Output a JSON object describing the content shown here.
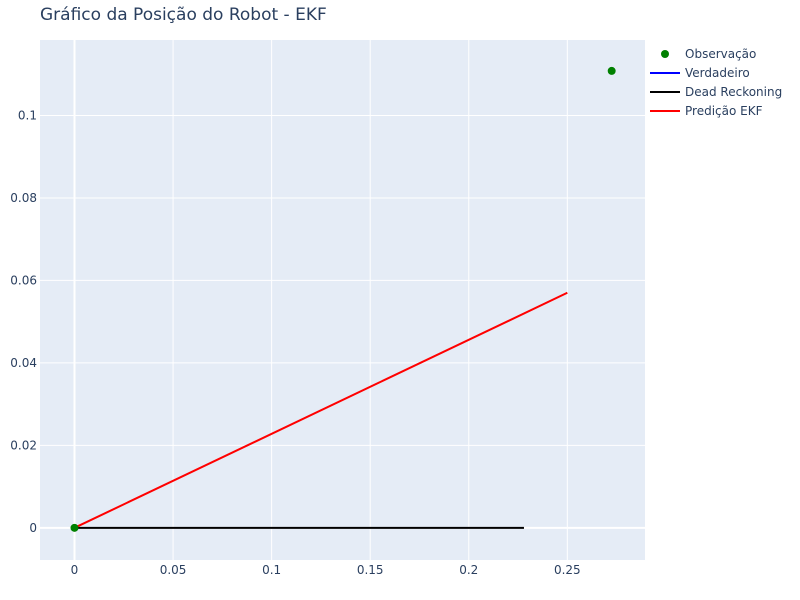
{
  "chart_data": {
    "type": "line",
    "title": "Gráfico da Posição do Robot - EKF",
    "xlabel": "",
    "ylabel": "",
    "xlim": [
      -0.0175,
      0.2894
    ],
    "ylim": [
      -0.0078,
      0.1183
    ],
    "x_ticks": [
      0,
      0.05,
      0.1,
      0.15,
      0.2,
      0.25
    ],
    "x_tick_labels": [
      "0",
      "0.05",
      "0.1",
      "0.15",
      "0.2",
      "0.25"
    ],
    "y_ticks": [
      0,
      0.02,
      0.04,
      0.06,
      0.08,
      0.1
    ],
    "y_tick_labels": [
      "0",
      "0.02",
      "0.04",
      "0.06",
      "0.08",
      "0.1"
    ],
    "grid": true,
    "legend_position": "top-right outside",
    "series": [
      {
        "name": "Observação",
        "mode": "markers",
        "color": "#008000",
        "x": [
          0,
          0.2725
        ],
        "y": [
          0,
          0.1108
        ]
      },
      {
        "name": "Verdadeiro",
        "mode": "lines",
        "color": "#0000ff",
        "x": [],
        "y": []
      },
      {
        "name": "Dead Reckoning",
        "mode": "lines",
        "color": "#000000",
        "x": [
          0,
          0.228
        ],
        "y": [
          0,
          0
        ]
      },
      {
        "name": "Predição EKF",
        "mode": "lines",
        "color": "#ff0000",
        "x": [
          0,
          0.25
        ],
        "y": [
          0,
          0.057
        ]
      }
    ],
    "colors": {
      "plot_bg": "#e5ecf6",
      "grid": "#ffffff",
      "text": "#2a3f5f"
    }
  }
}
